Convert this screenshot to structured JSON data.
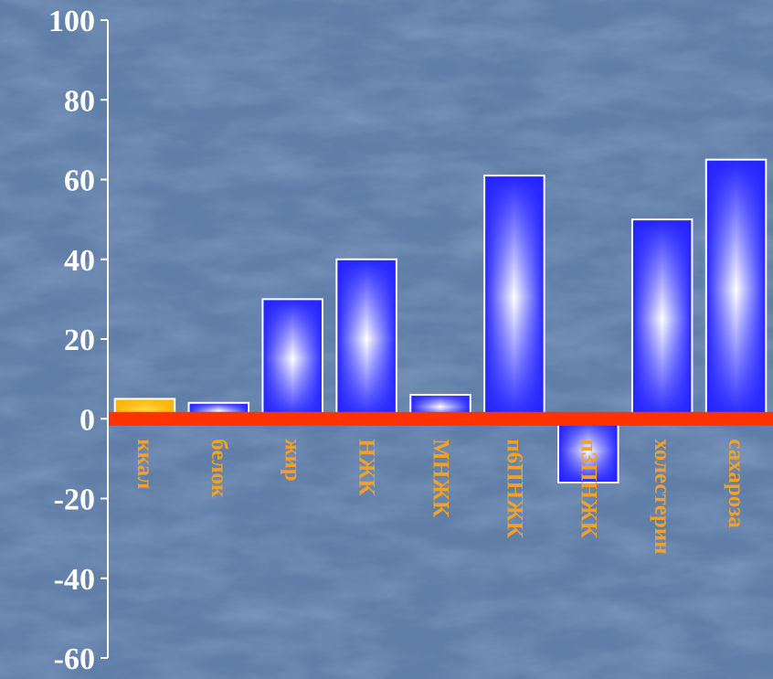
{
  "chart_data": {
    "type": "bar",
    "categories": [
      "ккал",
      "белок",
      "жир",
      "НЖК",
      "МНЖК",
      "п6ПНЖК",
      "п3ПНЖК",
      "холестерин",
      "сахароза"
    ],
    "values": [
      5,
      4,
      30,
      40,
      6,
      61,
      -16,
      50,
      65
    ],
    "ylim": [
      -60,
      100
    ],
    "yticks": [
      -60,
      -40,
      -20,
      0,
      20,
      40,
      60,
      80,
      100
    ],
    "grid": false,
    "legend": "none",
    "label_orientation": "rotated 90° clockwise",
    "colors": {
      "background": "#5f7ea8",
      "bar_edge": "#2323ff",
      "bar_center": "#ffffff",
      "first_bar_edge": "#ffb300",
      "first_bar_center": "#ffd84a",
      "baseline": "#ff3300",
      "axis": "#ffffff",
      "tick_label": "#ffffff",
      "category_label": "#f2a028"
    }
  }
}
